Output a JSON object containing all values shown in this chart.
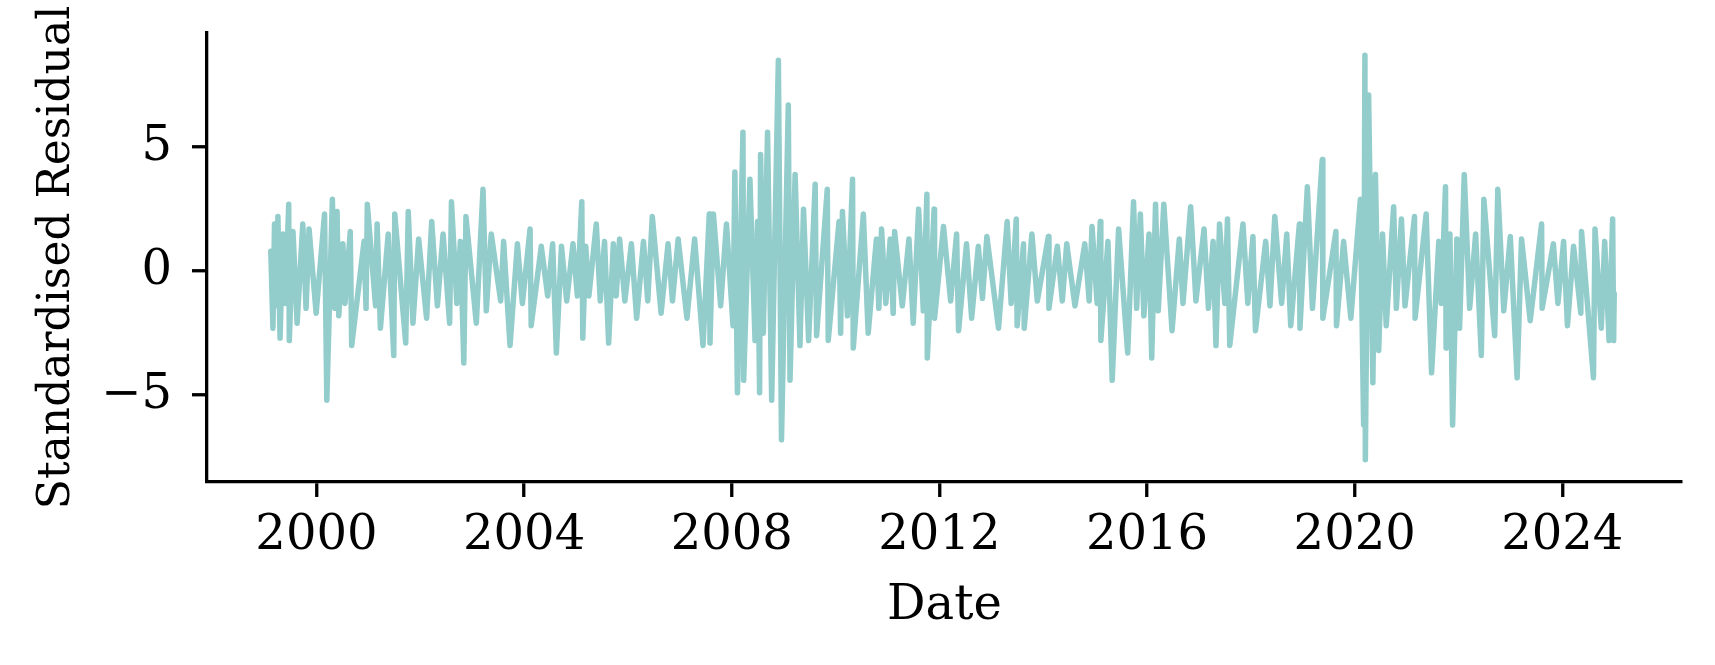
{
  "chart_data": {
    "type": "line",
    "xlabel": "Date",
    "ylabel": "Standardised Residual",
    "color": "#92cccb",
    "x": [
      "1999-02-14",
      "1999-03-01",
      "1999-03-12",
      "1999-03-25",
      "1999-04-05",
      "1999-04-20",
      "1999-05-10",
      "1999-05-28",
      "1999-06-20",
      "1999-06-24",
      "1999-07-20",
      "1999-08-18",
      "1999-09-27",
      "1999-10-20",
      "1999-11-10",
      "1999-12-30",
      "2000-02-27",
      "2000-03-14",
      "2000-04-22",
      "2000-05-10",
      "2000-05-25",
      "2000-06-06",
      "2000-07-05",
      "2000-07-20",
      "2000-08-26",
      "2000-09-05",
      "2000-12-01",
      "2000-12-15",
      "2000-12-24",
      "2001-02-20",
      "2001-03-03",
      "2001-03-26",
      "2001-05-20",
      "2001-06-28",
      "2001-07-05",
      "2001-09-20",
      "2001-10-08",
      "2001-11-10",
      "2001-12-20",
      "2002-02-14",
      "2002-03-22",
      "2002-05-01",
      "2002-06-10",
      "2002-07-26",
      "2002-08-08",
      "2002-09-15",
      "2002-10-10",
      "2002-11-03",
      "2002-11-18",
      "2003-01-30",
      "2003-03-18",
      "2003-04-10",
      "2003-05-15",
      "2003-07-20",
      "2003-08-10",
      "2003-09-24",
      "2003-11-15",
      "2003-12-20",
      "2004-02-12",
      "2004-02-20",
      "2004-05-01",
      "2004-06-15",
      "2004-07-20",
      "2004-08-15",
      "2004-09-20",
      "2004-10-27",
      "2004-12-10",
      "2005-01-10",
      "2005-02-10",
      "2005-02-17",
      "2005-03-10",
      "2005-04-01",
      "2005-05-23",
      "2005-06-20",
      "2005-07-20",
      "2005-08-18",
      "2005-09-20",
      "2005-10-10",
      "2005-11-03",
      "2005-12-10",
      "2006-01-25",
      "2006-03-03",
      "2006-04-20",
      "2006-05-20",
      "2006-06-21",
      "2006-08-22",
      "2006-10-10",
      "2006-11-10",
      "2006-12-20",
      "2007-02-20",
      "2007-04-15",
      "2007-06-13",
      "2007-07-27",
      "2007-08-01",
      "2007-08-25",
      "2007-10-15",
      "2007-11-25",
      "2008-01-10",
      "2008-01-23",
      "2008-02-10",
      "2008-03-20",
      "2008-03-25",
      "2008-05-08",
      "2008-06-13",
      "2008-07-01",
      "2008-07-15",
      "2008-07-22",
      "2008-08-10",
      "2008-09-09",
      "2008-10-08",
      "2008-11-24",
      "2008-12-16",
      "2009-02-02",
      "2009-02-14",
      "2009-03-22",
      "2009-04-25",
      "2009-05-20",
      "2009-06-25",
      "2009-08-10",
      "2009-08-20",
      "2009-11-03",
      "2009-11-10",
      "2010-01-25",
      "2010-02-05",
      "2010-02-18",
      "2010-03-25",
      "2010-04-30",
      "2010-05-05",
      "2010-07-15",
      "2010-08-18",
      "2010-10-15",
      "2010-11-01",
      "2010-11-20",
      "2010-12-20",
      "2011-01-20",
      "2011-02-10",
      "2011-02-20",
      "2011-04-15",
      "2011-06-01",
      "2011-07-01",
      "2011-08-08",
      "2011-09-10",
      "2011-10-05",
      "2011-10-08",
      "2011-11-25",
      "2011-11-28",
      "2012-01-30",
      "2012-03-20",
      "2012-05-01",
      "2012-05-15",
      "2012-07-10",
      "2012-08-15",
      "2012-10-01",
      "2012-10-30",
      "2012-11-30",
      "2013-02-20",
      "2013-04-22",
      "2013-05-20",
      "2013-06-25",
      "2013-07-01",
      "2013-08-15",
      "2013-08-20",
      "2013-10-13",
      "2013-11-20",
      "2014-02-06",
      "2014-02-10",
      "2014-04-10",
      "2014-05-15",
      "2014-06-15",
      "2014-08-12",
      "2014-10-20",
      "2014-11-20",
      "2014-12-10",
      "2015-01-15",
      "2015-02-06",
      "2015-02-10",
      "2015-04-01",
      "2015-05-01",
      "2015-06-15",
      "2015-08-18",
      "2015-09-28",
      "2015-10-20",
      "2015-11-15",
      "2015-12-10",
      "2016-01-15",
      "2016-02-03",
      "2016-03-01",
      "2016-03-20",
      "2016-04-28",
      "2016-06-25",
      "2016-08-15",
      "2016-09-10",
      "2016-11-03",
      "2016-12-10",
      "2017-02-05",
      "2017-03-08",
      "2017-04-10",
      "2017-04-30",
      "2017-05-25",
      "2017-07-01",
      "2017-07-20",
      "2017-08-05",
      "2017-11-06",
      "2017-12-10",
      "2018-01-15",
      "2018-02-02",
      "2018-04-15",
      "2018-05-15",
      "2018-06-18",
      "2018-08-05",
      "2018-09-10",
      "2018-10-08",
      "2018-12-08",
      "2018-12-12",
      "2019-02-02",
      "2019-03-10",
      "2019-05-18",
      "2019-05-22",
      "2019-08-22",
      "2019-08-26",
      "2019-10-15",
      "2019-12-05",
      "2020-02-10",
      "2020-03-04",
      "2020-03-13",
      "2020-03-16",
      "2020-04-08",
      "2020-05-08",
      "2020-05-26",
      "2020-06-18",
      "2020-07-15",
      "2020-08-10",
      "2020-10-01",
      "2020-10-20",
      "2020-11-25",
      "2020-12-20",
      "2021-02-25",
      "2021-03-01",
      "2021-05-18",
      "2021-06-25",
      "2021-08-15",
      "2021-09-01",
      "2021-10-01",
      "2021-10-05",
      "2021-11-01",
      "2021-11-20",
      "2021-12-20",
      "2022-01-08",
      "2022-02-10",
      "2022-03-20",
      "2022-05-01",
      "2022-06-10",
      "2022-06-28",
      "2022-09-12",
      "2022-10-04",
      "2022-11-15",
      "2022-12-31",
      "2023-02-17",
      "2023-03-20",
      "2023-05-20",
      "2023-08-08",
      "2023-08-12",
      "2023-10-30",
      "2023-12-01",
      "2024-01-10",
      "2024-02-06",
      "2024-03-20",
      "2024-05-10",
      "2024-05-15",
      "2024-08-07",
      "2024-08-18",
      "2024-10-01",
      "2024-10-25",
      "2024-11-25",
      "2024-12-20",
      "2024-12-27",
      "2024-12-31"
    ],
    "values": [
      0.8,
      -2.3,
      1.9,
      -1.4,
      2.2,
      -2.7,
      1.5,
      -1.3,
      2.7,
      -2.8,
      1.6,
      -2.1,
      1.9,
      -1.5,
      1.7,
      -1.7,
      2.3,
      -5.2,
      2.9,
      -1.5,
      2.4,
      -1.8,
      1.1,
      -1.3,
      1.6,
      -3.0,
      1.2,
      -1.5,
      2.7,
      -1.4,
      1.9,
      -2.3,
      1.5,
      -3.4,
      2.3,
      -2.9,
      2.4,
      -2.1,
      1.3,
      -1.9,
      2.0,
      -1.4,
      1.5,
      -2.1,
      2.8,
      -1.3,
      1.2,
      -3.7,
      2.2,
      -2.1,
      3.3,
      -1.6,
      1.5,
      -1.2,
      1.2,
      -3.0,
      1.1,
      -1.3,
      1.7,
      -2.2,
      1.0,
      -1.0,
      1.1,
      -3.3,
      1.0,
      -1.2,
      1.1,
      -1.0,
      2.8,
      -2.7,
      1.0,
      -1.0,
      1.9,
      -1.2,
      1.2,
      -2.9,
      1.1,
      -1.0,
      1.3,
      -1.2,
      1.1,
      -1.9,
      1.2,
      -1.2,
      2.2,
      -1.7,
      1.1,
      -1.2,
      1.3,
      -1.9,
      1.3,
      -3.0,
      2.3,
      -2.9,
      2.3,
      -1.4,
      1.9,
      -2.2,
      4.0,
      -4.9,
      5.6,
      -4.4,
      3.7,
      -2.8,
      2.0,
      -4.9,
      4.7,
      -2.5,
      5.6,
      -5.2,
      8.5,
      -6.8,
      6.7,
      -4.4,
      3.9,
      -3.0,
      2.5,
      -2.8,
      3.5,
      -2.6,
      3.3,
      -2.8,
      2.0,
      -2.5,
      2.4,
      -1.8,
      3.7,
      -3.1,
      2.3,
      -2.5,
      1.3,
      -1.5,
      1.7,
      -1.3,
      1.3,
      -1.7,
      1.6,
      -1.4,
      1.3,
      -2.1,
      2.5,
      -1.6,
      3.1,
      -3.5,
      2.5,
      -1.9,
      1.8,
      -1.2,
      1.5,
      -2.4,
      1.1,
      -1.9,
      1.0,
      -1.1,
      1.4,
      -2.3,
      2.0,
      -1.3,
      2.1,
      -2.2,
      1.1,
      -2.3,
      1.5,
      -1.2,
      1.4,
      -1.5,
      1.0,
      -1.2,
      1.1,
      -1.4,
      1.1,
      -1.2,
      1.8,
      -1.3,
      2.0,
      -2.8,
      1.2,
      -4.4,
      1.7,
      -3.3,
      2.8,
      -1.5,
      2.3,
      -1.8,
      1.5,
      -3.5,
      2.7,
      -1.6,
      2.7,
      -2.4,
      1.3,
      -1.3,
      2.6,
      -1.2,
      1.7,
      -1.5,
      1.2,
      -3.0,
      1.9,
      -1.3,
      2.1,
      -3.0,
      1.9,
      -1.3,
      1.4,
      -2.4,
      1.2,
      -1.4,
      2.2,
      -1.3,
      1.5,
      -2.2,
      1.9,
      -2.3,
      3.4,
      -1.5,
      4.5,
      -1.9,
      1.6,
      -2.2,
      1.2,
      -1.9,
      2.9,
      -6.2,
      8.7,
      -7.6,
      7.1,
      -4.5,
      3.9,
      -3.2,
      1.5,
      -2.2,
      2.6,
      -1.5,
      2.1,
      -1.4,
      2.2,
      -1.9,
      2.3,
      -4.1,
      1.2,
      -1.3,
      3.4,
      -3.1,
      1.5,
      -6.2,
      1.3,
      -2.3,
      3.9,
      -1.5,
      1.5,
      -3.4,
      2.9,
      -2.6,
      3.3,
      -1.6,
      1.4,
      -4.3,
      1.3,
      -2.0,
      1.9,
      -1.5,
      1.1,
      -1.3,
      1.2,
      -2.2,
      1.0,
      -1.7,
      1.6,
      -4.3,
      1.7,
      -2.3,
      1.2,
      -2.8,
      2.1,
      -2.8,
      -0.9
    ],
    "xlim": [
      "1997-11-22",
      "2026-04-22"
    ],
    "ylim": [
      -8.5,
      9.6
    ],
    "xticks": [
      "2000",
      "2004",
      "2008",
      "2012",
      "2016",
      "2020",
      "2024"
    ],
    "yticks": [
      {
        "value": -5,
        "label": "−5"
      },
      0,
      5
    ]
  }
}
